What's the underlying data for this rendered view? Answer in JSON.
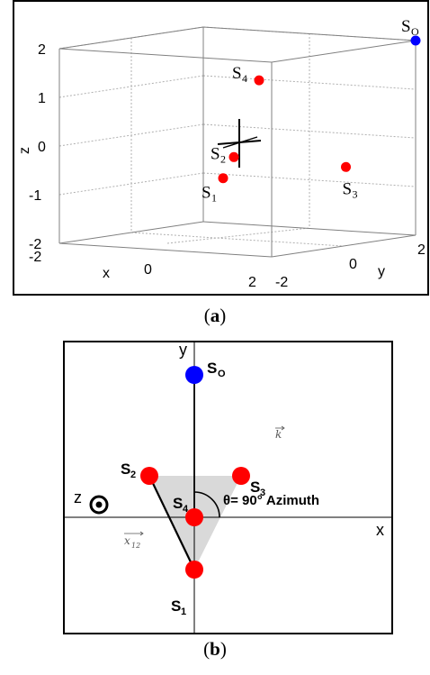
{
  "figure": {
    "caption_a": {
      "letter": "a"
    },
    "caption_b": {
      "letter": "b"
    }
  },
  "panel_a": {
    "axes": {
      "x_label": "x",
      "y_label": "y",
      "z_label": "z",
      "x_ticks": [
        "-2",
        "0",
        "2"
      ],
      "y_ticks": [
        "-2",
        "0",
        "2"
      ],
      "z_ticks": [
        "-2",
        "-1",
        "0",
        "1",
        "2"
      ]
    },
    "sensors": [
      {
        "name": "S",
        "sub": "1",
        "x": 0.0,
        "y": -0.4,
        "z": -0.7,
        "color": "#ff0000"
      },
      {
        "name": "S",
        "sub": "2",
        "x": 0.0,
        "y": -0.1,
        "z": -0.3,
        "color": "#ff0000"
      },
      {
        "name": "S",
        "sub": "3",
        "x": 1.5,
        "y": 0.8,
        "z": -0.5,
        "color": "#ff0000"
      },
      {
        "name": "S",
        "sub": "4",
        "x": 0.0,
        "y": 0.6,
        "z": 1.2,
        "color": "#ff0000"
      },
      {
        "name": "S",
        "sub": "O",
        "x": 2.0,
        "y": 2.0,
        "z": 2.0,
        "color": "#0000ff"
      }
    ]
  },
  "panel_b": {
    "labels": {
      "x": "x",
      "y": "y",
      "z": "z",
      "k_vec": "k",
      "x12_vec": "x",
      "x12_sub": "12",
      "angle": "θ= 90° Azimuth"
    },
    "points": {
      "s1": {
        "name": "S",
        "sub": "1"
      },
      "s2": {
        "name": "S",
        "sub": "2"
      },
      "s3": {
        "name": "S",
        "sub": "3"
      },
      "s4": {
        "name": "S",
        "sub": "4"
      },
      "so": {
        "name": "S",
        "sub": "O"
      }
    },
    "colors": {
      "sensor": "#ff0000",
      "source": "#0000ff",
      "triangle": "#d9d9d9"
    }
  }
}
